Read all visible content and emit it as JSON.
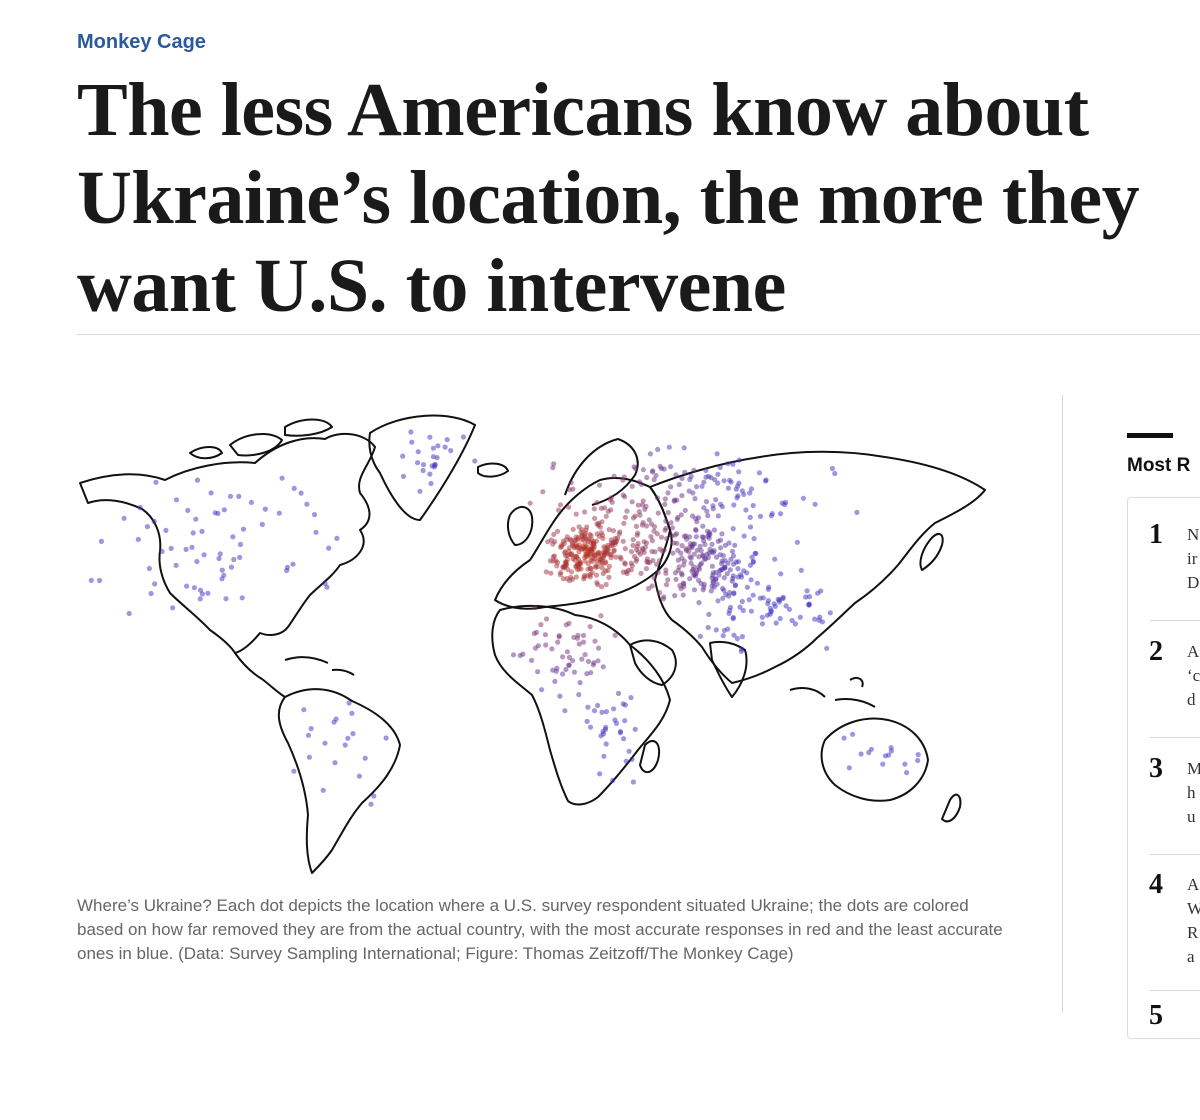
{
  "article": {
    "section": "Monkey Cage",
    "headline_lines": [
      "The less Americans know about",
      "Ukraine’s location, the more they",
      "want U.S. to intervene"
    ],
    "caption": "Where’s Ukraine? Each dot depicts the location where a U.S. survey respondent situated Ukraine; the dots are colored based on how far removed they are from the actual country, with the most accurate responses in red and the least accurate ones in blue. (Data: Survey Sampling International; Figure: Thomas Zeitzoff/The Monkey Cage)"
  },
  "map": {
    "accurate_color": "#b8321e",
    "least_accurate_color": "#3a2fc4"
  },
  "sidebar": {
    "title": "Most R",
    "items": [
      {
        "num": "1",
        "text": "N\nir\nD"
      },
      {
        "num": "2",
        "text": "A\n‘c\nd"
      },
      {
        "num": "3",
        "text": "M\nh\nu"
      },
      {
        "num": "4",
        "text": "A\nW\nR\na"
      },
      {
        "num": "5",
        "text": ""
      }
    ]
  }
}
